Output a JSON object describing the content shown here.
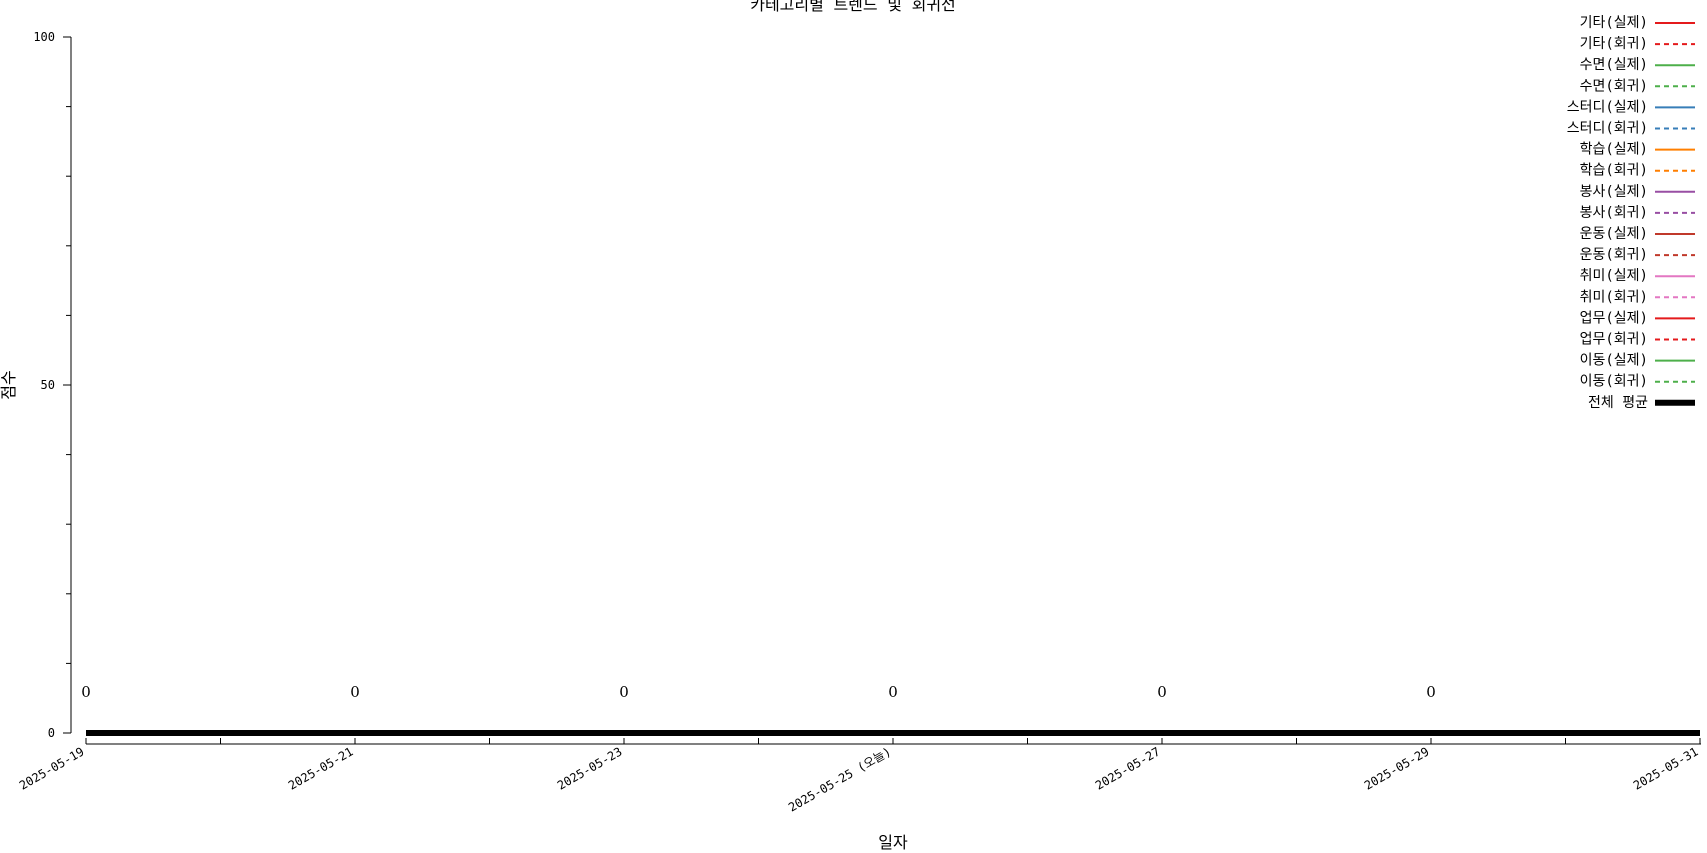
{
  "chart_data": {
    "type": "line",
    "title": "카테고리별 트렌드 및 회귀선",
    "xlabel": "일자",
    "ylabel": "점수",
    "ylim": [
      0,
      100
    ],
    "y_ticks": [
      0,
      50,
      100
    ],
    "x_start": "2025-05-19",
    "x_end": "2025-05-31",
    "x_ticks": [
      {
        "date": "2025-05-19",
        "label": "2025-05-19"
      },
      {
        "date": "2025-05-21",
        "label": "2025-05-21"
      },
      {
        "date": "2025-05-23",
        "label": "2025-05-23"
      },
      {
        "date": "2025-05-25",
        "label": "2025-05-25 (오늘)"
      },
      {
        "date": "2025-05-27",
        "label": "2025-05-27"
      },
      {
        "date": "2025-05-29",
        "label": "2025-05-29"
      },
      {
        "date": "2025-05-31",
        "label": "2025-05-31"
      }
    ],
    "data_labels": [
      {
        "date": "2025-05-19",
        "text": "0"
      },
      {
        "date": "2025-05-21",
        "text": "0"
      },
      {
        "date": "2025-05-23",
        "text": "0"
      },
      {
        "date": "2025-05-25",
        "text": "0"
      },
      {
        "date": "2025-05-27",
        "text": "0"
      },
      {
        "date": "2025-05-29",
        "text": "0"
      }
    ],
    "legend_position": "top-right",
    "grid": false,
    "series": [
      {
        "name": "기타(실제)",
        "color": "#e41a1c",
        "style": "solid"
      },
      {
        "name": "기타(회귀)",
        "color": "#e41a1c",
        "style": "dashed"
      },
      {
        "name": "수면(실제)",
        "color": "#4daf4a",
        "style": "solid"
      },
      {
        "name": "수면(회귀)",
        "color": "#4daf4a",
        "style": "dashed"
      },
      {
        "name": "스터디(실제)",
        "color": "#377eb8",
        "style": "solid"
      },
      {
        "name": "스터디(회귀)",
        "color": "#377eb8",
        "style": "dashed"
      },
      {
        "name": "학습(실제)",
        "color": "#ff7f00",
        "style": "solid"
      },
      {
        "name": "학습(회귀)",
        "color": "#ff7f00",
        "style": "dashed"
      },
      {
        "name": "봉사(실제)",
        "color": "#984ea3",
        "style": "solid"
      },
      {
        "name": "봉사(회귀)",
        "color": "#984ea3",
        "style": "dashed"
      },
      {
        "name": "운동(실제)",
        "color": "#c0392b",
        "style": "solid"
      },
      {
        "name": "운동(회귀)",
        "color": "#c0392b",
        "style": "dashed"
      },
      {
        "name": "취미(실제)",
        "color": "#e377c2",
        "style": "solid"
      },
      {
        "name": "취미(회귀)",
        "color": "#e377c2",
        "style": "dashed"
      },
      {
        "name": "업무(실제)",
        "color": "#e41a1c",
        "style": "solid"
      },
      {
        "name": "업무(회귀)",
        "color": "#e41a1c",
        "style": "dashed"
      },
      {
        "name": "이동(실제)",
        "color": "#4daf4a",
        "style": "solid"
      },
      {
        "name": "이동(회귀)",
        "color": "#4daf4a",
        "style": "dashed"
      },
      {
        "name": "전체 평균",
        "color": "#000000",
        "style": "thick",
        "points": [
          {
            "x": "2025-05-19",
            "y": 0
          },
          {
            "x": "2025-05-31",
            "y": 0
          }
        ]
      }
    ]
  }
}
